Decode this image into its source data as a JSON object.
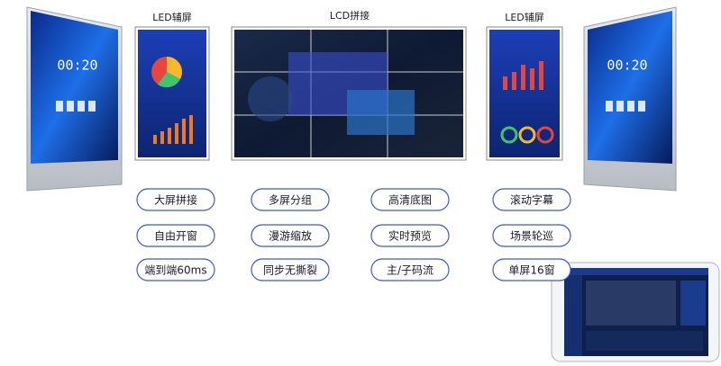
{
  "labels": [
    "LED辅屏",
    "LCD拼接",
    "LED辅屏"
  ],
  "features": [
    [
      "大屏拼接",
      "多屏分组",
      "高清底图",
      "滚动字幕"
    ],
    [
      "自由开窗",
      "漫游缩放",
      "实时预览",
      "场景轮巡"
    ],
    [
      "端到端60ms",
      "同步无撕裂",
      "主/子码流",
      "单屏16窗"
    ]
  ],
  "clocks": [
    "00:20",
    "00:20"
  ]
}
